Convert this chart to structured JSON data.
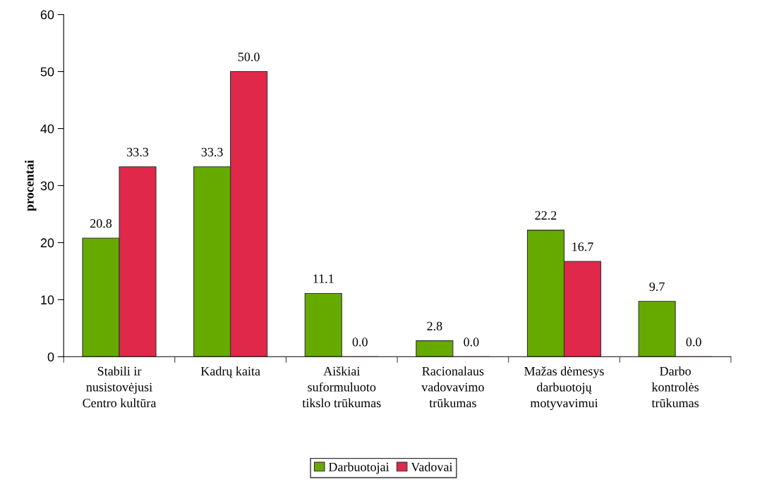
{
  "chart_data": {
    "type": "bar",
    "ylabel": "procentai",
    "categories": [
      "Stabili ir\nnusistovėjusi\nCentro kultūra",
      "Kadrų kaita",
      "Aiškiai\nsuformuluoto\ntikslo trūkumas",
      "Racionalaus\nvadovavimo\ntrūkumas",
      "Mažas dėmesys\ndarbuotojų\nmotyvavimui",
      "Darbo\nkontrolės\ntrūkumas"
    ],
    "series": [
      {
        "name": "Darbuotojai",
        "color": "#66aa00",
        "values": [
          20.8,
          33.3,
          11.1,
          2.8,
          22.2,
          9.7
        ],
        "value_labels": [
          "20.8",
          "33.3",
          "11.1",
          "2.8",
          "22.2",
          "9.7"
        ]
      },
      {
        "name": "Vadovai",
        "color": "#e0284a",
        "values": [
          33.3,
          50.0,
          0.0,
          0.0,
          16.7,
          0.0
        ],
        "value_labels": [
          "33.3",
          "50.0",
          "0.0",
          "0.0",
          "16.7",
          "0.0"
        ]
      }
    ],
    "ylim": [
      0,
      60
    ],
    "yticks": [
      0,
      10,
      20,
      30,
      40,
      50,
      60
    ],
    "grid": false,
    "legend": "bottom"
  }
}
